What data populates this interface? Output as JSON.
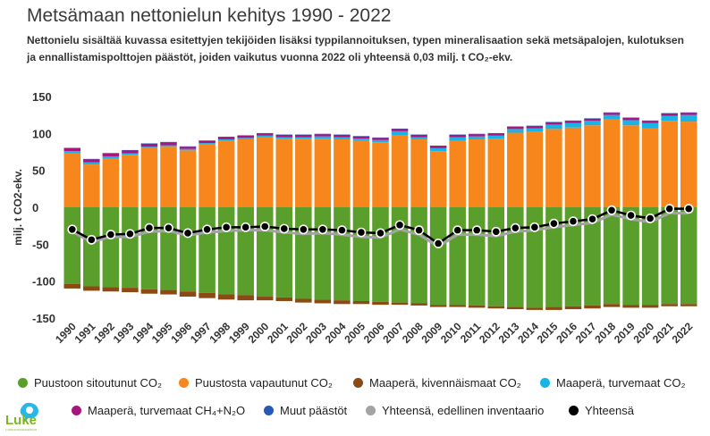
{
  "title": "Metsämaan nettonielun kehitys 1990 - 2022",
  "subtitle": "Nettonielu sisältää kuvassa esitettyjen tekijöiden lisäksi typpilannoituksen, typen mineralisaation sekä metsäpalojen, kulotuksen ja ennallistamispolttojen päästöt, joiden vaikutus vuonna 2022 oli yhteensä 0,03 milj. t CO₂-ekv.",
  "logo": {
    "text": "Luke",
    "subtext": "LUONNONVARAKESKUS"
  },
  "colors": {
    "puustoon": "#5a9e2c",
    "puustosta": "#f7861d",
    "kivennais": "#8b4a13",
    "turve_co2": "#1ab3e6",
    "turve_ch4n2o": "#a8157e",
    "muut": "#2659b5",
    "edellinen": "#a3a3a3",
    "yhteensa": "#000000",
    "axis": "#333333"
  },
  "chart_data": {
    "type": "bar",
    "title": "Metsämaan nettonielun kehitys 1990 - 2022",
    "ylabel": "milj. t CO2-ekv.",
    "xlabel": "",
    "ylim": [
      -150,
      150
    ],
    "yticks": [
      -150,
      -100,
      -50,
      0,
      50,
      100,
      150
    ],
    "categories": [
      "1990",
      "1991",
      "1992",
      "1993",
      "1994",
      "1995",
      "1996",
      "1997",
      "1998",
      "1999",
      "2000",
      "2001",
      "2002",
      "2003",
      "2004",
      "2005",
      "2006",
      "2007",
      "2008",
      "2009",
      "2010",
      "2011",
      "2012",
      "2013",
      "2014",
      "2015",
      "2016",
      "2017",
      "2018",
      "2019",
      "2020",
      "2021",
      "2022"
    ],
    "stacked": true,
    "legend_position": "bottom",
    "series": [
      {
        "name": "Puustoon sitoutunut CO₂",
        "type": "bar",
        "color_key": "puustoon",
        "values": [
          -104,
          -107,
          -108,
          -109,
          -111,
          -112,
          -114,
          -116,
          -118,
          -119,
          -121,
          -122,
          -124,
          -125,
          -126,
          -127,
          -128,
          -129,
          -130,
          -132,
          -132,
          -133,
          -134,
          -135,
          -136,
          -135,
          -134,
          -133,
          -131,
          -132,
          -132,
          -131,
          -131
        ]
      },
      {
        "name": "Puustosta vapautunut CO₂",
        "type": "bar",
        "color_key": "puustosta",
        "values": [
          73,
          58,
          66,
          71,
          80,
          82,
          77,
          85,
          90,
          92,
          95,
          93,
          93,
          93,
          92,
          90,
          88,
          98,
          92,
          76,
          90,
          92,
          93,
          101,
          102,
          106,
          108,
          111,
          119,
          111,
          107,
          117,
          116
        ]
      },
      {
        "name": "Maaperä, kivennäismaat CO₂",
        "type": "bar",
        "color_key": "kivennais",
        "values": [
          -6,
          -6,
          -6,
          -6,
          -6,
          -6,
          -7,
          -7,
          -7,
          -7,
          -5,
          -5,
          -5,
          -5,
          -5,
          -4,
          -4,
          -3,
          -3,
          -3,
          -3,
          -3,
          -3,
          -3,
          -3,
          -4,
          -4,
          -4,
          -4,
          -4,
          -4,
          -3,
          -3
        ]
      },
      {
        "name": "Maaperä, turvemaat CO₂",
        "type": "bar",
        "color_key": "turve_co2",
        "values": [
          3,
          3,
          3,
          2,
          2,
          2,
          2,
          2,
          2,
          2,
          2,
          2,
          2,
          3,
          3,
          3,
          3,
          5,
          3,
          4,
          5,
          4,
          4,
          5,
          5,
          6,
          6,
          6,
          6,
          7,
          7,
          7,
          9
        ]
      },
      {
        "name": "Maaperä, turvemaat CH₄+N₂O",
        "type": "bar",
        "color_key": "turve_ch4n2o",
        "values": [
          4,
          4,
          4,
          4,
          4,
          4,
          3,
          3,
          3,
          3,
          3,
          3,
          3,
          3,
          3,
          3,
          3,
          3,
          3,
          3,
          3,
          3,
          3,
          3,
          3,
          3,
          3,
          3,
          3,
          3,
          3,
          3,
          3
        ]
      },
      {
        "name": "Muut päästöt",
        "type": "bar",
        "color_key": "muut",
        "values": [
          0.5,
          0.5,
          0.5,
          0.5,
          0.5,
          0.5,
          0.5,
          0.5,
          0.5,
          0.5,
          0.5,
          0.5,
          0.5,
          0.5,
          0.5,
          0.5,
          0.5,
          0.5,
          0.5,
          0.5,
          0.5,
          0.5,
          0.5,
          0.5,
          0.5,
          0.5,
          0.5,
          0.5,
          0.5,
          0.5,
          0.5,
          0.5,
          0.5
        ]
      },
      {
        "name": "Yhteensä, edellinen inventaario",
        "type": "line",
        "color_key": "edellinen",
        "values": [
          -33,
          -47,
          -40,
          -40,
          -33,
          -32,
          -38,
          -34,
          -32,
          -31,
          -31,
          -34,
          -36,
          -35,
          -37,
          -40,
          -41,
          -30,
          -37,
          -53,
          -37,
          -37,
          -39,
          -33,
          -31,
          -27,
          -24,
          -21,
          -10,
          -16,
          -20,
          -8,
          -8
        ]
      },
      {
        "name": "Yhteensä",
        "type": "line",
        "color_key": "yhteensa",
        "values": [
          -30,
          -44,
          -37,
          -36,
          -28,
          -28,
          -35,
          -30,
          -27,
          -27,
          -26,
          -29,
          -30,
          -30,
          -31,
          -34,
          -35,
          -24,
          -31,
          -49,
          -31,
          -31,
          -33,
          -28,
          -27,
          -22,
          -19,
          -16,
          -4,
          -11,
          -15,
          -2,
          -2
        ]
      }
    ]
  }
}
